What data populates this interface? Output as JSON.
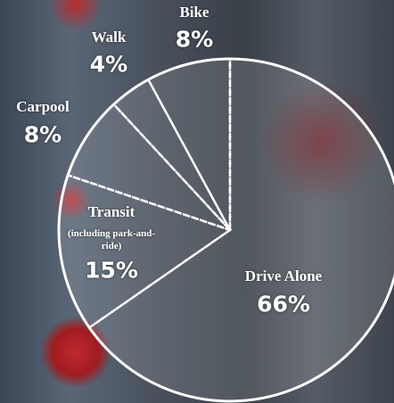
{
  "chart_data": {
    "type": "pie",
    "categories": [
      "Drive Alone",
      "Transit",
      "Carpool",
      "Walk",
      "Bike"
    ],
    "category_notes": [
      null,
      "(including park-and-ride)",
      null,
      null,
      null
    ],
    "values": [
      66,
      15,
      8,
      4,
      8
    ],
    "value_labels": [
      "66%",
      "15%",
      "8%",
      "4%",
      "8%"
    ],
    "color": "rgba(255,255,255,0.12)"
  }
}
